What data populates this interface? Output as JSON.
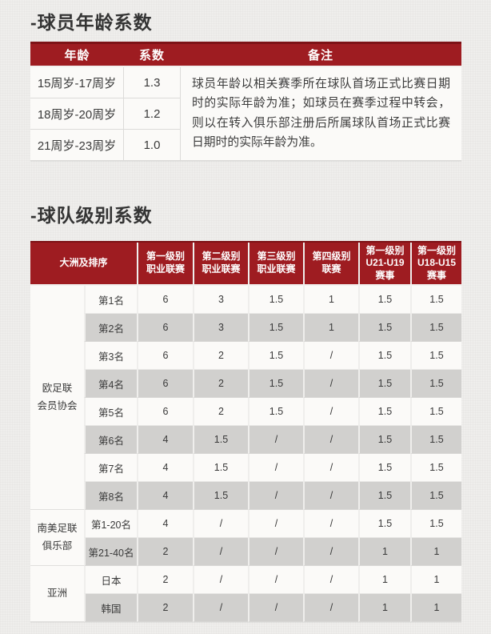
{
  "titles": {
    "age_section": "-球员年龄系数",
    "level_section": "-球队级别系数"
  },
  "colors": {
    "header_red": "#9e1c21",
    "header_red_dark": "#7d1216",
    "row_white": "#fbfaf8",
    "row_gray": "#d1d0ce",
    "page_background": "#efeeec",
    "text": "#3a3a3a"
  },
  "age_table": {
    "headers": [
      "年龄",
      "系数",
      "备注"
    ],
    "rows": [
      {
        "age": "15周岁-17周岁",
        "coef": "1.3"
      },
      {
        "age": "18周岁-20周岁",
        "coef": "1.2"
      },
      {
        "age": "21周岁-23周岁",
        "coef": "1.0"
      }
    ],
    "remark": "球员年龄以相关赛季所在球队首场正式比赛日期时的实际年龄为准；如球员在赛季过程中转会，则以在转入俱乐部注册后所属球队首场正式比赛日期时的实际年龄为准。"
  },
  "level_table": {
    "headers": [
      "大洲及排序",
      "第一级别\n职业联赛",
      "第二级别\n职业联赛",
      "第三级别\n职业联赛",
      "第四级别\n联赛",
      "第一级别\nU21-U19\n赛事",
      "第一级别\nU18-U15\n赛事"
    ],
    "groups": [
      {
        "name": "欧足联\n会员协会",
        "rows": [
          {
            "rank": "第1名",
            "values": [
              "6",
              "3",
              "1.5",
              "1",
              "1.5",
              "1.5"
            ]
          },
          {
            "rank": "第2名",
            "values": [
              "6",
              "3",
              "1.5",
              "1",
              "1.5",
              "1.5"
            ]
          },
          {
            "rank": "第3名",
            "values": [
              "6",
              "2",
              "1.5",
              "/",
              "1.5",
              "1.5"
            ]
          },
          {
            "rank": "第4名",
            "values": [
              "6",
              "2",
              "1.5",
              "/",
              "1.5",
              "1.5"
            ]
          },
          {
            "rank": "第5名",
            "values": [
              "6",
              "2",
              "1.5",
              "/",
              "1.5",
              "1.5"
            ]
          },
          {
            "rank": "第6名",
            "values": [
              "4",
              "1.5",
              "/",
              "/",
              "1.5",
              "1.5"
            ]
          },
          {
            "rank": "第7名",
            "values": [
              "4",
              "1.5",
              "/",
              "/",
              "1.5",
              "1.5"
            ]
          },
          {
            "rank": "第8名",
            "values": [
              "4",
              "1.5",
              "/",
              "/",
              "1.5",
              "1.5"
            ]
          }
        ]
      },
      {
        "name": "南美足联\n俱乐部",
        "rows": [
          {
            "rank": "第1-20名",
            "values": [
              "4",
              "/",
              "/",
              "/",
              "1.5",
              "1.5"
            ]
          },
          {
            "rank": "第21-40名",
            "values": [
              "2",
              "/",
              "/",
              "/",
              "1",
              "1"
            ]
          }
        ]
      },
      {
        "name": "亚洲",
        "rows": [
          {
            "rank": "日本",
            "values": [
              "2",
              "/",
              "/",
              "/",
              "1",
              "1"
            ]
          },
          {
            "rank": "韩国",
            "values": [
              "2",
              "/",
              "/",
              "/",
              "1",
              "1"
            ]
          }
        ]
      }
    ]
  }
}
